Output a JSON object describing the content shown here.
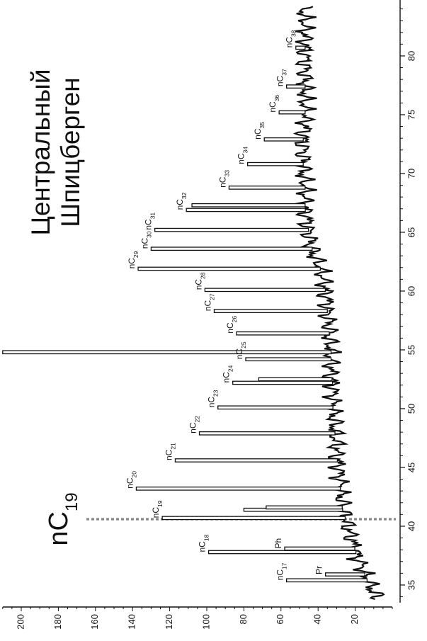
{
  "chart_data": {
    "type": "line",
    "title": "Центральный Шпицберген",
    "highlight_label": {
      "prefix": "nC",
      "sub": "19"
    },
    "x_ticks": [
      35,
      40,
      45,
      50,
      55,
      60,
      65,
      70,
      75,
      80
    ],
    "y_ticks": [
      20,
      40,
      60,
      80,
      100,
      120,
      140,
      160,
      180,
      200
    ],
    "xlim": [
      33.5,
      85
    ],
    "ylim": [
      0,
      210
    ],
    "reference_line_x": 40.6,
    "baseline": [
      [
        33.8,
        8
      ],
      [
        34.5,
        10
      ],
      [
        35.0,
        12
      ],
      [
        35.5,
        14
      ],
      [
        36.0,
        15
      ],
      [
        36.5,
        16
      ],
      [
        37.0,
        18
      ],
      [
        37.5,
        19
      ],
      [
        38.0,
        20
      ],
      [
        38.5,
        21
      ],
      [
        39.0,
        22
      ],
      [
        39.5,
        23
      ],
      [
        40.0,
        24
      ],
      [
        40.5,
        25
      ],
      [
        41.0,
        26
      ],
      [
        41.5,
        27
      ],
      [
        42.0,
        27
      ],
      [
        43.0,
        28
      ],
      [
        44.0,
        28
      ],
      [
        45.0,
        29
      ],
      [
        46.0,
        30
      ],
      [
        47.0,
        30
      ],
      [
        48.0,
        31
      ],
      [
        49.0,
        31
      ],
      [
        50.0,
        32
      ],
      [
        51.0,
        32
      ],
      [
        52.0,
        32
      ],
      [
        53.0,
        33
      ],
      [
        54.0,
        33
      ],
      [
        55.0,
        33
      ],
      [
        56.0,
        34
      ],
      [
        57.0,
        34
      ],
      [
        58.0,
        35
      ],
      [
        59.0,
        35
      ],
      [
        60.0,
        36
      ],
      [
        61.0,
        37
      ],
      [
        62.0,
        39
      ],
      [
        63.0,
        42
      ],
      [
        64.0,
        44
      ],
      [
        65.0,
        45
      ],
      [
        66.0,
        46
      ],
      [
        67.0,
        47
      ],
      [
        68.0,
        47
      ],
      [
        69.0,
        47
      ],
      [
        70.0,
        48
      ],
      [
        71.0,
        48
      ],
      [
        72.0,
        48
      ],
      [
        73.0,
        48
      ],
      [
        74.0,
        47
      ],
      [
        75.0,
        47
      ],
      [
        76.0,
        47
      ],
      [
        77.0,
        47
      ],
      [
        78.0,
        47
      ],
      [
        79.0,
        47
      ],
      [
        80.0,
        47
      ],
      [
        81.0,
        47
      ],
      [
        82.0,
        47
      ],
      [
        83.0,
        47
      ],
      [
        84.0,
        48
      ]
    ],
    "peaks": [
      {
        "x": 35.4,
        "y": 57,
        "label": "nC17",
        "sub": "17"
      },
      {
        "x": 35.9,
        "y": 36,
        "label": "Pr",
        "sub": ""
      },
      {
        "x": 37.8,
        "y": 99,
        "label": "nC18",
        "sub": "18"
      },
      {
        "x": 38.1,
        "y": 58,
        "label": "Ph",
        "sub": ""
      },
      {
        "x": 40.7,
        "y": 124,
        "label": "nC19",
        "sub": "19"
      },
      {
        "x": 41.4,
        "y": 80,
        "label": "",
        "sub": ""
      },
      {
        "x": 41.6,
        "y": 68,
        "label": "",
        "sub": ""
      },
      {
        "x": 43.2,
        "y": 138,
        "label": "nC20",
        "sub": "20"
      },
      {
        "x": 45.6,
        "y": 117,
        "label": "nC21",
        "sub": "21"
      },
      {
        "x": 47.9,
        "y": 104,
        "label": "nC22",
        "sub": "22"
      },
      {
        "x": 50.1,
        "y": 94,
        "label": "nC23",
        "sub": "23"
      },
      {
        "x": 52.2,
        "y": 86,
        "label": "nC24",
        "sub": "24"
      },
      {
        "x": 52.5,
        "y": 72,
        "label": "",
        "sub": ""
      },
      {
        "x": 54.2,
        "y": 79,
        "label": "nC25",
        "sub": "25"
      },
      {
        "x": 54.8,
        "y": 210,
        "label": "",
        "sub": ""
      },
      {
        "x": 56.4,
        "y": 84,
        "label": "nC26",
        "sub": "26"
      },
      {
        "x": 58.3,
        "y": 96,
        "label": "nC27",
        "sub": "27"
      },
      {
        "x": 60.1,
        "y": 101,
        "label": "nC28",
        "sub": "28"
      },
      {
        "x": 61.9,
        "y": 137,
        "label": "nC29",
        "sub": "29"
      },
      {
        "x": 63.6,
        "y": 130,
        "label": "nC30",
        "sub": "30"
      },
      {
        "x": 65.2,
        "y": 128,
        "label": "nC31",
        "sub": "31"
      },
      {
        "x": 66.9,
        "y": 111,
        "label": "nC32",
        "sub": "32"
      },
      {
        "x": 67.3,
        "y": 108,
        "label": "",
        "sub": ""
      },
      {
        "x": 68.8,
        "y": 88,
        "label": "nC33",
        "sub": "33"
      },
      {
        "x": 70.8,
        "y": 78,
        "label": "nC34",
        "sub": "34"
      },
      {
        "x": 72.9,
        "y": 69,
        "label": "nC35",
        "sub": "35"
      },
      {
        "x": 75.2,
        "y": 61,
        "label": "nC36",
        "sub": "36"
      },
      {
        "x": 77.4,
        "y": 57,
        "label": "nC37",
        "sub": "37"
      },
      {
        "x": 80.7,
        "y": 52,
        "label": "nC38",
        "sub": "38"
      }
    ]
  }
}
